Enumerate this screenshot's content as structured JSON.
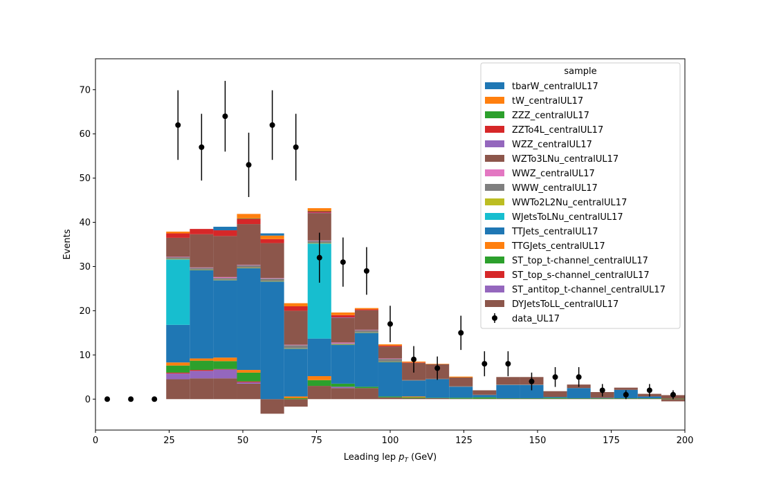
{
  "chart_data": {
    "type": "bar",
    "stacked": true,
    "xlabel": "Leading lep",
    "xlabel_var": "p",
    "xlabel_sub": "T",
    "xlabel_unit": "(GeV)",
    "ylabel": "Events",
    "xlim": [
      0,
      200
    ],
    "ylim": [
      -7,
      77
    ],
    "x_ticks": [
      0,
      25,
      50,
      75,
      100,
      125,
      150,
      175,
      200
    ],
    "y_ticks": [
      0,
      10,
      20,
      30,
      40,
      50,
      60,
      70
    ],
    "bin_edges": [
      0,
      8,
      16,
      24,
      32,
      40,
      48,
      56,
      64,
      72,
      80,
      88,
      96,
      104,
      112,
      120,
      128,
      136,
      144,
      152,
      160,
      168,
      176,
      184,
      192,
      200
    ],
    "render_from_bin": 3,
    "legend_title": "sample",
    "legend_position": "top-right",
    "grid": false,
    "series": [
      {
        "name": "DYJetsToLL_centralUL17",
        "color": "#8c564b",
        "values": [
          0,
          0,
          0,
          4.5,
          4.7,
          4.7,
          3.5,
          -3.3,
          -1.7,
          3.0,
          2.5,
          2.5,
          0.4,
          0.2,
          0.2,
          0.1,
          0.1,
          0.1,
          0.1,
          0.1,
          0.1,
          0.1,
          0.1,
          0.1,
          -0.5
        ]
      },
      {
        "name": "ST_antitop_t-channel_centralUL17",
        "color": "#9467bd",
        "values": [
          0,
          0,
          0,
          1.3,
          1.7,
          2.0,
          0.3,
          0,
          0,
          0,
          0.3,
          0,
          0,
          0,
          0,
          0,
          0,
          0,
          0,
          0,
          0,
          0,
          0,
          0,
          0
        ]
      },
      {
        "name": "ST_top_s-channel_centralUL17",
        "color": "#d62728",
        "values": [
          0,
          0,
          0,
          0.2,
          0.2,
          0.1,
          0.2,
          0,
          0,
          0,
          0,
          0,
          0,
          0,
          0,
          0,
          0,
          0,
          0,
          0,
          0,
          0,
          0,
          0,
          0
        ]
      },
      {
        "name": "ST_top_t-channel_centralUL17",
        "color": "#2ca02c",
        "values": [
          0,
          0,
          0,
          1.6,
          2.1,
          1.8,
          2.0,
          0,
          0.2,
          1.3,
          0.7,
          0.3,
          0.2,
          0.2,
          0.1,
          0.2,
          0.3,
          0.1,
          0.1,
          0.2,
          0.1,
          0.1,
          0.1,
          0.1,
          0.1
        ]
      },
      {
        "name": "TTGJets_centralUL17",
        "color": "#ff7f0e",
        "values": [
          0,
          0,
          0,
          0.7,
          0.5,
          0.8,
          0.6,
          0,
          0.4,
          0.9,
          0,
          0,
          0,
          0.2,
          0,
          0,
          0,
          0,
          0,
          0,
          0,
          0,
          0,
          0,
          0
        ]
      },
      {
        "name": "TTJets_centralUL17",
        "color": "#1f77b4",
        "values": [
          0,
          0,
          0,
          8.5,
          20.0,
          17.5,
          23.0,
          26.6,
          10.8,
          8.5,
          8.8,
          12.2,
          7.8,
          3.6,
          4.2,
          2.5,
          0.5,
          3.0,
          3.0,
          0.2,
          2.3,
          0.1,
          1.9,
          0.4,
          0
        ]
      },
      {
        "name": "WJetsToLNu_centralUL17",
        "color": "#17becf",
        "values": [
          0,
          0,
          0,
          14.8,
          0,
          0,
          0,
          0,
          0,
          21.5,
          0,
          0,
          0,
          0,
          0,
          0,
          0,
          0,
          0,
          0,
          0,
          0,
          0,
          0,
          0
        ]
      },
      {
        "name": "WWTo2L2Nu_centralUL17",
        "color": "#bcbd22",
        "values": [
          0,
          0,
          0,
          0.1,
          0.1,
          0.1,
          0.1,
          0.1,
          0.1,
          0.1,
          0.1,
          0.1,
          0.1,
          0,
          0,
          0,
          0,
          0,
          0,
          0,
          0,
          0,
          0,
          0,
          0
        ]
      },
      {
        "name": "WWW_centralUL17",
        "color": "#7f7f7f",
        "values": [
          0,
          0,
          0,
          0.4,
          0.4,
          0.4,
          0.6,
          0.6,
          0.7,
          0.5,
          0.2,
          0.5,
          0.6,
          0.1,
          0.1,
          0.1,
          0.1,
          0.1,
          0.1,
          0,
          0,
          0,
          0,
          0,
          0
        ]
      },
      {
        "name": "WWZ_centralUL17",
        "color": "#e377c2",
        "values": [
          0,
          0,
          0,
          0.1,
          0.1,
          0.2,
          0.1,
          0.1,
          0.1,
          0.1,
          0.2,
          0.1,
          0.1,
          0,
          0,
          0,
          0,
          0,
          0,
          0,
          0,
          0,
          0,
          0,
          0
        ]
      },
      {
        "name": "WZTo3LNu_centralUL17",
        "color": "#8c564b",
        "values": [
          0,
          0,
          0,
          4.3,
          7.5,
          9.3,
          9.2,
          7.9,
          7.7,
          6.2,
          5.6,
          4.4,
          2.7,
          3.9,
          3.3,
          2.0,
          1.0,
          1.7,
          1.7,
          1.3,
          0.8,
          1.3,
          0.5,
          0.6,
          0.8
        ]
      },
      {
        "name": "WZZ_centralUL17",
        "color": "#9467bd",
        "values": [
          0,
          0,
          0,
          0,
          0,
          0,
          0,
          0,
          0,
          0.1,
          0.1,
          0,
          0,
          0,
          0,
          0,
          0,
          0,
          0,
          0,
          0,
          0,
          0,
          0,
          0
        ]
      },
      {
        "name": "ZZTo4L_centralUL17",
        "color": "#d62728",
        "values": [
          0,
          0,
          0,
          1.0,
          1.2,
          1.3,
          1.2,
          0.9,
          1.0,
          0.3,
          0.5,
          0.2,
          0.2,
          0.1,
          0,
          0,
          0,
          0,
          0,
          0,
          0,
          0,
          0,
          0,
          0
        ]
      },
      {
        "name": "ZZZ_centralUL17",
        "color": "#2ca02c",
        "values": [
          0,
          0,
          0,
          0,
          0,
          0,
          0.1,
          0,
          0,
          0.1,
          0,
          0,
          0,
          0,
          0,
          0,
          0,
          0,
          0,
          0,
          0,
          0,
          0,
          0,
          0
        ]
      },
      {
        "name": "tW_centralUL17",
        "color": "#ff7f0e",
        "values": [
          0,
          0,
          0,
          0.4,
          0,
          0,
          1.0,
          0.8,
          0.7,
          0.6,
          0.6,
          0.3,
          0.3,
          0.2,
          0.1,
          0.2,
          0,
          0,
          0,
          0,
          0,
          0,
          0,
          0,
          0
        ]
      },
      {
        "name": "tbarW_centralUL17",
        "color": "#1f77b4",
        "values": [
          0,
          0,
          0,
          0,
          0,
          0.8,
          0,
          0.5,
          0,
          0,
          0,
          0,
          0,
          0,
          0,
          0,
          0,
          0,
          0,
          0,
          0,
          0,
          0,
          0,
          0
        ]
      }
    ],
    "data": {
      "name": "data_UL17",
      "color": "#000000",
      "x": [
        4,
        12,
        20,
        28,
        36,
        44,
        52,
        60,
        68,
        76,
        84,
        92,
        100,
        108,
        116,
        124,
        132,
        140,
        148,
        156,
        164,
        172,
        180,
        188,
        196
      ],
      "y": [
        0,
        0,
        0,
        62,
        57,
        64,
        53,
        62,
        57,
        32,
        31,
        29,
        17,
        9,
        7,
        15,
        8,
        8,
        4,
        5,
        5,
        2,
        1,
        2,
        1
      ]
    }
  }
}
